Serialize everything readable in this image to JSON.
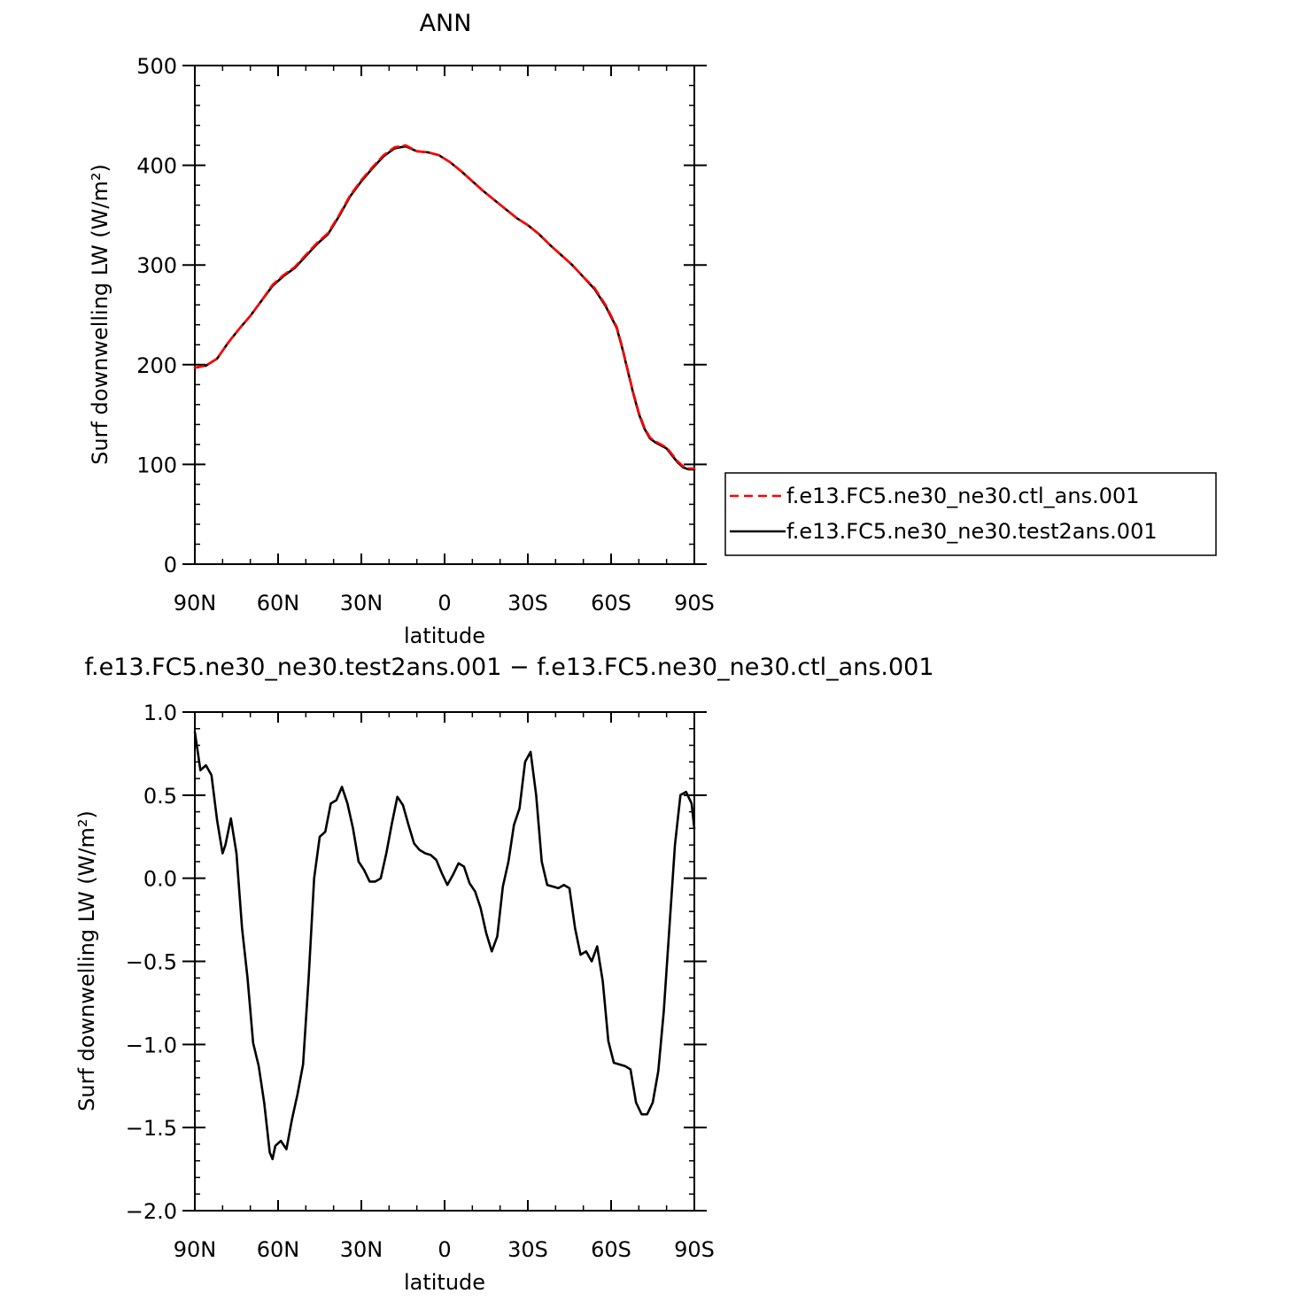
{
  "chart_data": [
    {
      "type": "line",
      "title": "ANN",
      "xlabel": "latitude",
      "ylabel": "Surf downwelling LW (W/m²)",
      "xlim": [
        90,
        -90
      ],
      "ylim": [
        0,
        500
      ],
      "x_ticks": [
        {
          "value": 90,
          "label": "90N"
        },
        {
          "value": 60,
          "label": "60N"
        },
        {
          "value": 30,
          "label": "30N"
        },
        {
          "value": 0,
          "label": "0"
        },
        {
          "value": -30,
          "label": "30S"
        },
        {
          "value": -60,
          "label": "60S"
        },
        {
          "value": -90,
          "label": "90S"
        }
      ],
      "y_ticks": [
        {
          "value": 0,
          "label": "0"
        },
        {
          "value": 100,
          "label": "100"
        },
        {
          "value": 200,
          "label": "200"
        },
        {
          "value": 300,
          "label": "300"
        },
        {
          "value": 400,
          "label": "400"
        },
        {
          "value": 500,
          "label": "500"
        }
      ],
      "grid": false,
      "legend": "right",
      "x": [
        90,
        86,
        82,
        78,
        74,
        70,
        66,
        62,
        58,
        54,
        50,
        46,
        42,
        38,
        34,
        30,
        26,
        22,
        18,
        14,
        10,
        6,
        2,
        -2,
        -6,
        -10,
        -14,
        -18,
        -22,
        -26,
        -30,
        -34,
        -38,
        -42,
        -46,
        -50,
        -54,
        -58,
        -62,
        -64,
        -66,
        -68,
        -70,
        -72,
        -74,
        -76,
        -78,
        -80,
        -82,
        -84,
        -86,
        -88,
        -90
      ],
      "series": [
        {
          "name": "f.e13.FC5.ne30_ne30.ctl_ans.001",
          "color": "#ff0000",
          "dash": "dashed",
          "values": [
            197,
            199,
            206,
            222,
            236,
            249,
            264,
            280,
            290,
            298,
            310,
            322,
            332,
            350,
            370,
            385,
            398,
            410,
            418,
            420,
            414,
            413,
            410,
            403,
            394,
            384,
            374,
            365,
            356,
            347,
            340,
            331,
            320,
            310,
            300,
            288,
            277,
            260,
            238,
            218,
            195,
            172,
            152,
            137,
            127,
            123,
            120,
            117,
            110,
            103,
            98,
            96,
            96
          ]
        },
        {
          "name": "f.e13.FC5.ne30_ne30.test2ans.001",
          "color": "#000000",
          "dash": "solid",
          "values": [
            197,
            199,
            206,
            222,
            236,
            249,
            264,
            279,
            289,
            297,
            309,
            321,
            331,
            349,
            369,
            384,
            397,
            409,
            417,
            419,
            414,
            413,
            410,
            403,
            394,
            384,
            374,
            365,
            356,
            347,
            340,
            331,
            320,
            310,
            300,
            288,
            276,
            259,
            237,
            217,
            194,
            171,
            151,
            136,
            126,
            122,
            119,
            116,
            109,
            102,
            97,
            95,
            95
          ]
        }
      ]
    },
    {
      "type": "line",
      "title": "f.e13.FC5.ne30_ne30.test2ans.001 − f.e13.FC5.ne30_ne30.ctl_ans.001",
      "xlabel": "latitude",
      "ylabel": "Surf downwelling LW (W/m²)",
      "xlim": [
        90,
        -90
      ],
      "ylim": [
        -2.0,
        1.0
      ],
      "x_ticks": [
        {
          "value": 90,
          "label": "90N"
        },
        {
          "value": 60,
          "label": "60N"
        },
        {
          "value": 30,
          "label": "30N"
        },
        {
          "value": 0,
          "label": "0"
        },
        {
          "value": -30,
          "label": "30S"
        },
        {
          "value": -60,
          "label": "60S"
        },
        {
          "value": -90,
          "label": "90S"
        }
      ],
      "y_ticks": [
        {
          "value": -2.0,
          "label": "−2.0"
        },
        {
          "value": -1.5,
          "label": "−1.5"
        },
        {
          "value": -1.0,
          "label": "−1.0"
        },
        {
          "value": -0.5,
          "label": "−0.5"
        },
        {
          "value": 0.0,
          "label": "0.0"
        },
        {
          "value": 0.5,
          "label": "0.5"
        },
        {
          "value": 1.0,
          "label": "1.0"
        }
      ],
      "grid": false,
      "x": [
        90,
        88,
        86,
        84,
        82,
        80,
        79,
        77,
        75,
        73,
        71,
        69,
        67,
        65,
        63,
        62,
        61,
        59,
        57,
        55,
        53,
        51,
        49,
        47,
        45,
        43,
        41,
        39,
        37,
        35,
        33,
        31,
        29,
        27,
        25,
        23,
        21,
        19,
        17,
        15,
        13,
        11,
        9,
        7,
        5,
        3,
        1,
        -1,
        -3,
        -5,
        -7,
        -9,
        -11,
        -13,
        -15,
        -17,
        -19,
        -21,
        -23,
        -25,
        -27,
        -29,
        -31,
        -33,
        -35,
        -37,
        -39,
        -41,
        -43,
        -45,
        -47,
        -49,
        -51,
        -53,
        -55,
        -57,
        -59,
        -61,
        -63,
        -65,
        -67,
        -69,
        -71,
        -73,
        -75,
        -77,
        -79,
        -81,
        -83,
        -85,
        -87,
        -89,
        -90
      ],
      "series": [
        {
          "name": "",
          "color": "#000000",
          "dash": "solid",
          "values": [
            0.88,
            0.65,
            0.68,
            0.62,
            0.35,
            0.15,
            0.2,
            0.36,
            0.15,
            -0.3,
            -0.6,
            -0.99,
            -1.13,
            -1.35,
            -1.65,
            -1.69,
            -1.61,
            -1.58,
            -1.63,
            -1.45,
            -1.3,
            -1.12,
            -0.6,
            0.0,
            0.25,
            0.28,
            0.45,
            0.47,
            0.55,
            0.45,
            0.3,
            0.1,
            0.05,
            -0.02,
            -0.02,
            0.0,
            0.15,
            0.33,
            0.49,
            0.44,
            0.32,
            0.21,
            0.17,
            0.15,
            0.14,
            0.11,
            0.03,
            -0.04,
            0.02,
            0.09,
            0.07,
            -0.03,
            -0.08,
            -0.18,
            -0.33,
            -0.44,
            -0.35,
            -0.05,
            0.1,
            0.32,
            0.42,
            0.7,
            0.76,
            0.5,
            0.1,
            -0.04,
            -0.05,
            -0.06,
            -0.04,
            -0.06,
            -0.3,
            -0.46,
            -0.44,
            -0.5,
            -0.41,
            -0.62,
            -0.98,
            -1.11,
            -1.12,
            -1.13,
            -1.15,
            -1.35,
            -1.42,
            -1.42,
            -1.35,
            -1.16,
            -0.8,
            -0.3,
            0.2,
            0.5,
            0.52,
            0.45,
            0.3
          ]
        }
      ]
    }
  ]
}
